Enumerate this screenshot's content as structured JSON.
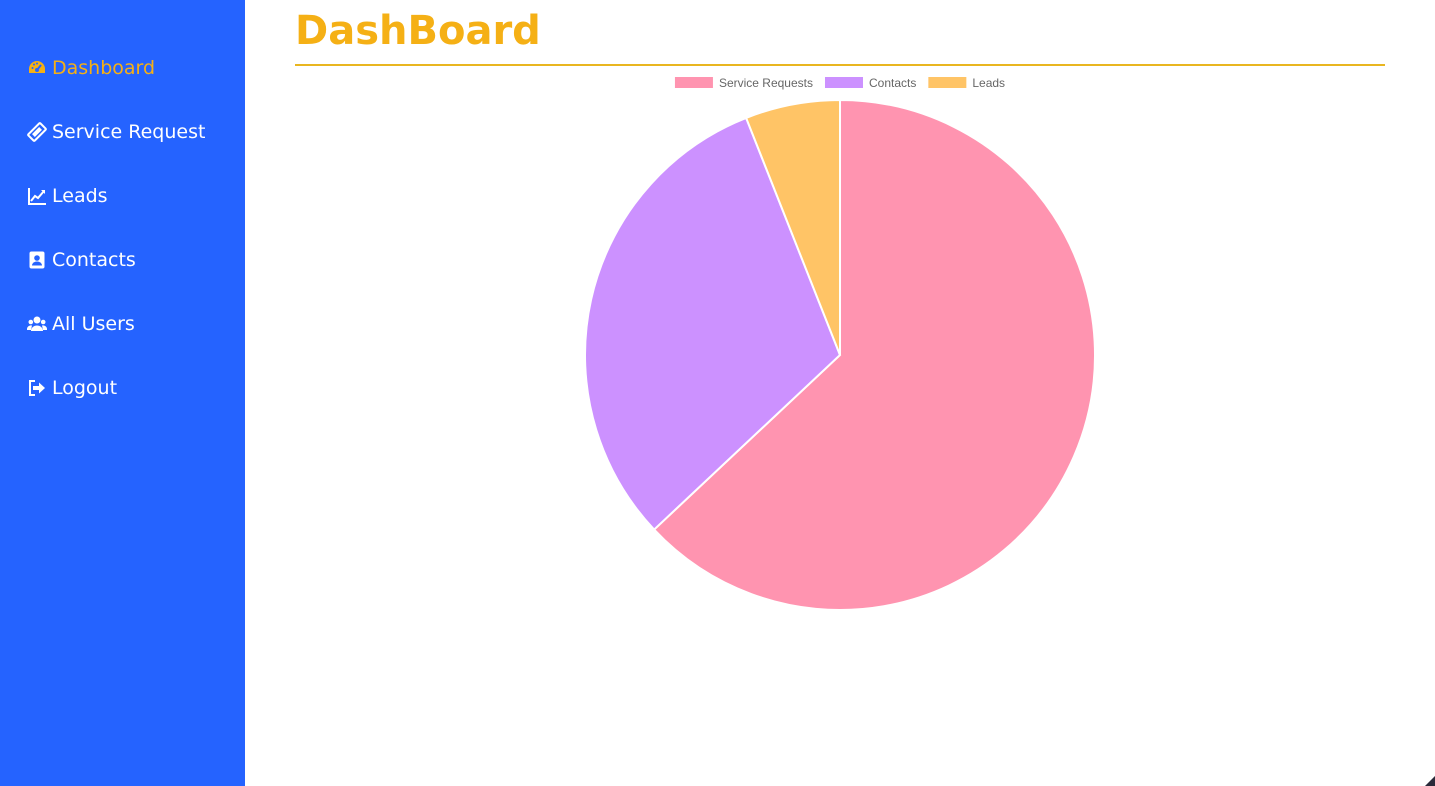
{
  "sidebar": {
    "items": [
      {
        "label": "Dashboard",
        "icon": "gauge-icon",
        "active": true
      },
      {
        "label": "Service Request",
        "icon": "ticket-icon",
        "active": false
      },
      {
        "label": "Leads",
        "icon": "line-chart-icon",
        "active": false
      },
      {
        "label": "Contacts",
        "icon": "address-book-icon",
        "active": false
      },
      {
        "label": "All Users",
        "icon": "users-icon",
        "active": false
      },
      {
        "label": "Logout",
        "icon": "sign-out-icon",
        "active": false
      }
    ]
  },
  "page": {
    "title": "DashBoard"
  },
  "colors": {
    "sidebar_bg": "#2563ff",
    "accent": "#f5b015",
    "service_requests": "#ff94b0",
    "contacts": "#cc91ff",
    "leads": "#ffc466"
  },
  "chart_data": {
    "type": "pie",
    "legend_position": "top",
    "categories": [
      "Service Requests",
      "Contacts",
      "Leads"
    ],
    "values": [
      63,
      31,
      6
    ],
    "colors": [
      "#ff94b0",
      "#cc91ff",
      "#ffc466"
    ]
  }
}
